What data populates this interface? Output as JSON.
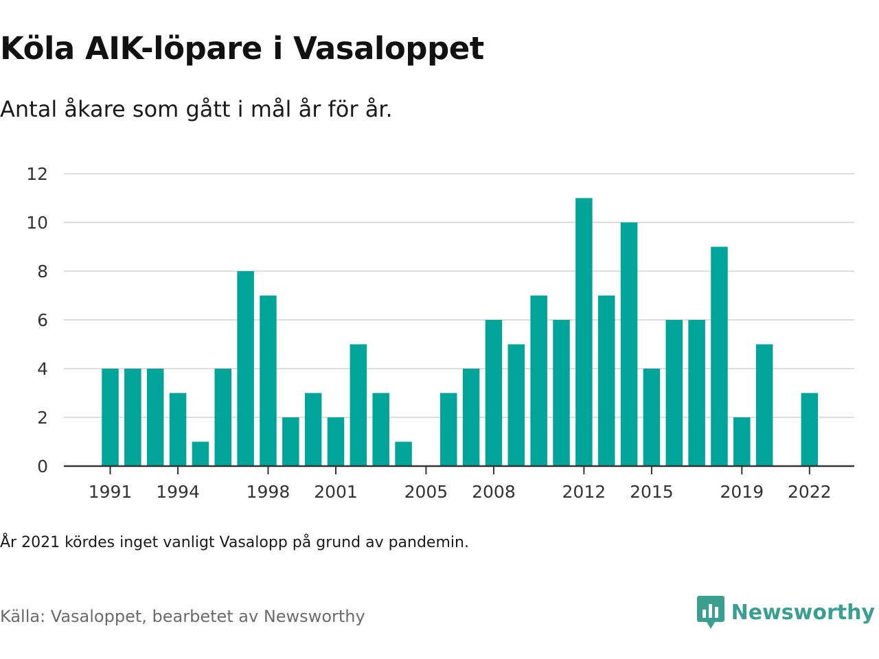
{
  "header": {
    "title": "Köla AIK-löpare i Vasaloppet",
    "subtitle": "Antal åkare som gått i mål år för år."
  },
  "footer": {
    "note": "År 2021 kördes inget vanligt Vasalopp på grund av pandemin.",
    "source": "Källa: Vasaloppet, bearbetet av Newsworthy",
    "brand": "Newsworthy",
    "brand_icon": "newsworthy-logo-icon"
  },
  "colors": {
    "bar": "#00a499",
    "brand": "#3a9e90",
    "grid": "#dddddd",
    "axis": "#333333"
  },
  "chart_data": {
    "type": "bar",
    "title": "Köla AIK-löpare i Vasaloppet",
    "subtitle": "Antal åkare som gått i mål år för år.",
    "xlabel": "",
    "ylabel": "",
    "categories": [
      "1991",
      "1992",
      "1993",
      "1994",
      "1995",
      "1996",
      "1997",
      "1998",
      "1999",
      "2000",
      "2001",
      "2002",
      "2003",
      "2004",
      "2005",
      "2006",
      "2007",
      "2008",
      "2009",
      "2010",
      "2011",
      "2012",
      "2013",
      "2014",
      "2015",
      "2016",
      "2017",
      "2018",
      "2019",
      "2020",
      "2021",
      "2022"
    ],
    "values": [
      4,
      4,
      4,
      3,
      1,
      4,
      8,
      7,
      2,
      3,
      2,
      5,
      3,
      1,
      0,
      3,
      4,
      6,
      5,
      7,
      6,
      11,
      7,
      10,
      4,
      6,
      6,
      9,
      2,
      5,
      0,
      3
    ],
    "x_tick_labels": [
      "1991",
      "1994",
      "1998",
      "2001",
      "2005",
      "2008",
      "2012",
      "2015",
      "2019",
      "2022"
    ],
    "y_ticks": [
      0,
      2,
      4,
      6,
      8,
      10,
      12
    ],
    "ylim": [
      0,
      12
    ],
    "grid": true,
    "legend": "none"
  }
}
